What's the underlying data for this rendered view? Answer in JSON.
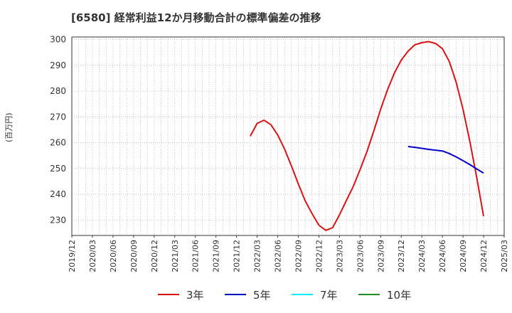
{
  "header": {
    "title": "[6580]  経常利益12か月移動合計の標準偏差の推移"
  },
  "chart_data": {
    "type": "line",
    "title": "[6580]  経常利益12か月移動合計の標準偏差の推移",
    "ylabel": "(百万円)",
    "xlabel": "",
    "ylim": [
      224,
      301
    ],
    "yticks": [
      230,
      240,
      250,
      260,
      270,
      280,
      290,
      300
    ],
    "x_tick_labels": [
      "2019/12",
      "2020/03",
      "2020/06",
      "2020/09",
      "2020/12",
      "2021/03",
      "2021/06",
      "2021/09",
      "2021/12",
      "2022/03",
      "2022/06",
      "2022/09",
      "2022/12",
      "2023/03",
      "2023/06",
      "2023/09",
      "2023/12",
      "2024/03",
      "2024/06",
      "2024/09",
      "2024/12",
      "2025/03"
    ],
    "grid": true,
    "legend_position": "bottom",
    "series": [
      {
        "name": "3年",
        "color": "#dd1111",
        "x": [
          "2022/02",
          "2022/03",
          "2022/04",
          "2022/05",
          "2022/06",
          "2022/07",
          "2022/08",
          "2022/09",
          "2022/10",
          "2022/11",
          "2022/12",
          "2023/01",
          "2023/02",
          "2023/03",
          "2023/04",
          "2023/05",
          "2023/06",
          "2023/07",
          "2023/08",
          "2023/09",
          "2023/10",
          "2023/11",
          "2023/12",
          "2024/01",
          "2024/02",
          "2024/03",
          "2024/04",
          "2024/05",
          "2024/06",
          "2024/07",
          "2024/08",
          "2024/09",
          "2024/10",
          "2024/11",
          "2024/12"
        ],
        "values": [
          262.5,
          267.5,
          268.7,
          267.0,
          263.0,
          257.5,
          251.0,
          244.0,
          237.5,
          232.5,
          228.0,
          226.0,
          227.0,
          232.0,
          237.5,
          243.0,
          249.5,
          256.5,
          264.5,
          273.0,
          280.5,
          287.0,
          292.0,
          295.5,
          298.0,
          298.8,
          299.2,
          298.5,
          296.5,
          291.5,
          283.5,
          273.0,
          260.5,
          246.5,
          231.5
        ]
      },
      {
        "name": "5年",
        "color": "#0000cc",
        "x": [
          "2024/01",
          "2024/02",
          "2024/03",
          "2024/04",
          "2024/05",
          "2024/06",
          "2024/07",
          "2024/08",
          "2024/09",
          "2024/10",
          "2024/11",
          "2024/12"
        ],
        "values": [
          258.5,
          258.2,
          257.8,
          257.4,
          257.1,
          256.8,
          255.8,
          254.5,
          253.0,
          251.5,
          249.8,
          248.2
        ]
      },
      {
        "name": "7年",
        "color": "#00eeff",
        "x": [],
        "values": []
      },
      {
        "name": "10年",
        "color": "#228b22",
        "x": [],
        "values": []
      }
    ]
  }
}
